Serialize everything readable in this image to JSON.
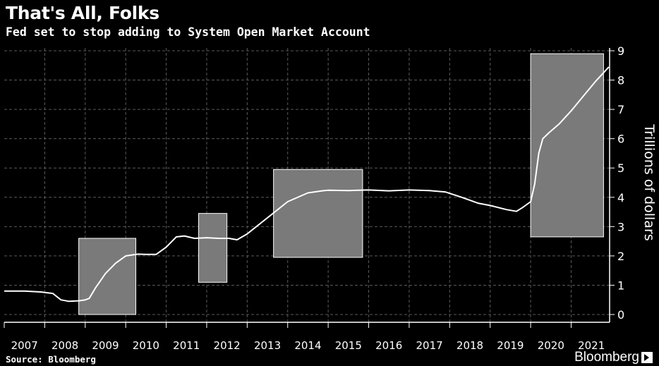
{
  "header": {
    "title": "That's All, Folks",
    "subtitle": "Fed set to stop adding to System Open Market Account"
  },
  "footer": {
    "source": "Source: Bloomberg",
    "brand": "Bloomberg"
  },
  "colors": {
    "background": "#000000",
    "grid": "#5a5a5a",
    "line": "#ffffff",
    "highlight_fill": "#7a7a7a",
    "highlight_stroke": "#ffffff",
    "text": "#ffffff"
  },
  "chart_data": {
    "type": "line",
    "title": "That's All, Folks",
    "subtitle": "Fed set to stop adding to System Open Market Account",
    "xlabel": "",
    "ylabel": "Trillions of dollars",
    "x_tick_labels": [
      "2007",
      "2008",
      "2009",
      "2010",
      "2011",
      "2012",
      "2013",
      "2014",
      "2015",
      "2016",
      "2017",
      "2018",
      "2019",
      "2020",
      "2021"
    ],
    "y_ticks": [
      0,
      1,
      2,
      3,
      4,
      5,
      6,
      7,
      8,
      9
    ],
    "ylim": [
      0,
      9
    ],
    "xlim": [
      2007.0,
      2021.95
    ],
    "y_axis_side": "right",
    "grid": true,
    "series": [
      {
        "x": [
          2007.0,
          2007.5,
          2007.9,
          2008.2,
          2008.4,
          2008.6,
          2008.85,
          2009.0,
          2009.1,
          2009.25,
          2009.5,
          2009.75,
          2010.0,
          2010.3,
          2010.5,
          2010.75,
          2011.0,
          2011.25,
          2011.45,
          2011.7,
          2012.0,
          2012.3,
          2012.55,
          2012.75,
          2013.0,
          2013.5,
          2014.0,
          2014.5,
          2014.85,
          2015.0,
          2015.5,
          2016.0,
          2016.5,
          2017.0,
          2017.5,
          2017.9,
          2018.3,
          2018.7,
          2019.0,
          2019.4,
          2019.65,
          2019.8,
          2020.0,
          2020.1,
          2020.2,
          2020.3,
          2020.45,
          2020.7,
          2021.0,
          2021.3,
          2021.6,
          2021.8,
          2021.93
        ],
        "y": [
          0.8,
          0.8,
          0.77,
          0.72,
          0.5,
          0.45,
          0.47,
          0.5,
          0.55,
          0.9,
          1.4,
          1.75,
          2.0,
          2.06,
          2.05,
          2.05,
          2.3,
          2.65,
          2.68,
          2.6,
          2.62,
          2.6,
          2.6,
          2.55,
          2.75,
          3.3,
          3.85,
          4.15,
          4.22,
          4.24,
          4.23,
          4.25,
          4.22,
          4.25,
          4.23,
          4.18,
          4.0,
          3.8,
          3.72,
          3.58,
          3.52,
          3.65,
          3.85,
          4.45,
          5.5,
          6.0,
          6.2,
          6.5,
          6.95,
          7.45,
          7.95,
          8.25,
          8.45
        ]
      }
    ],
    "highlight_regions": [
      {
        "x": [
          2008.84,
          2010.25
        ],
        "y": [
          0,
          2.6
        ]
      },
      {
        "x": [
          2011.8,
          2012.5
        ],
        "y": [
          1.1,
          3.45
        ]
      },
      {
        "x": [
          2013.65,
          2015.85
        ],
        "y": [
          1.95,
          4.95
        ]
      },
      {
        "x": [
          2020.0,
          2021.8
        ],
        "y": [
          2.65,
          8.9
        ]
      }
    ]
  }
}
